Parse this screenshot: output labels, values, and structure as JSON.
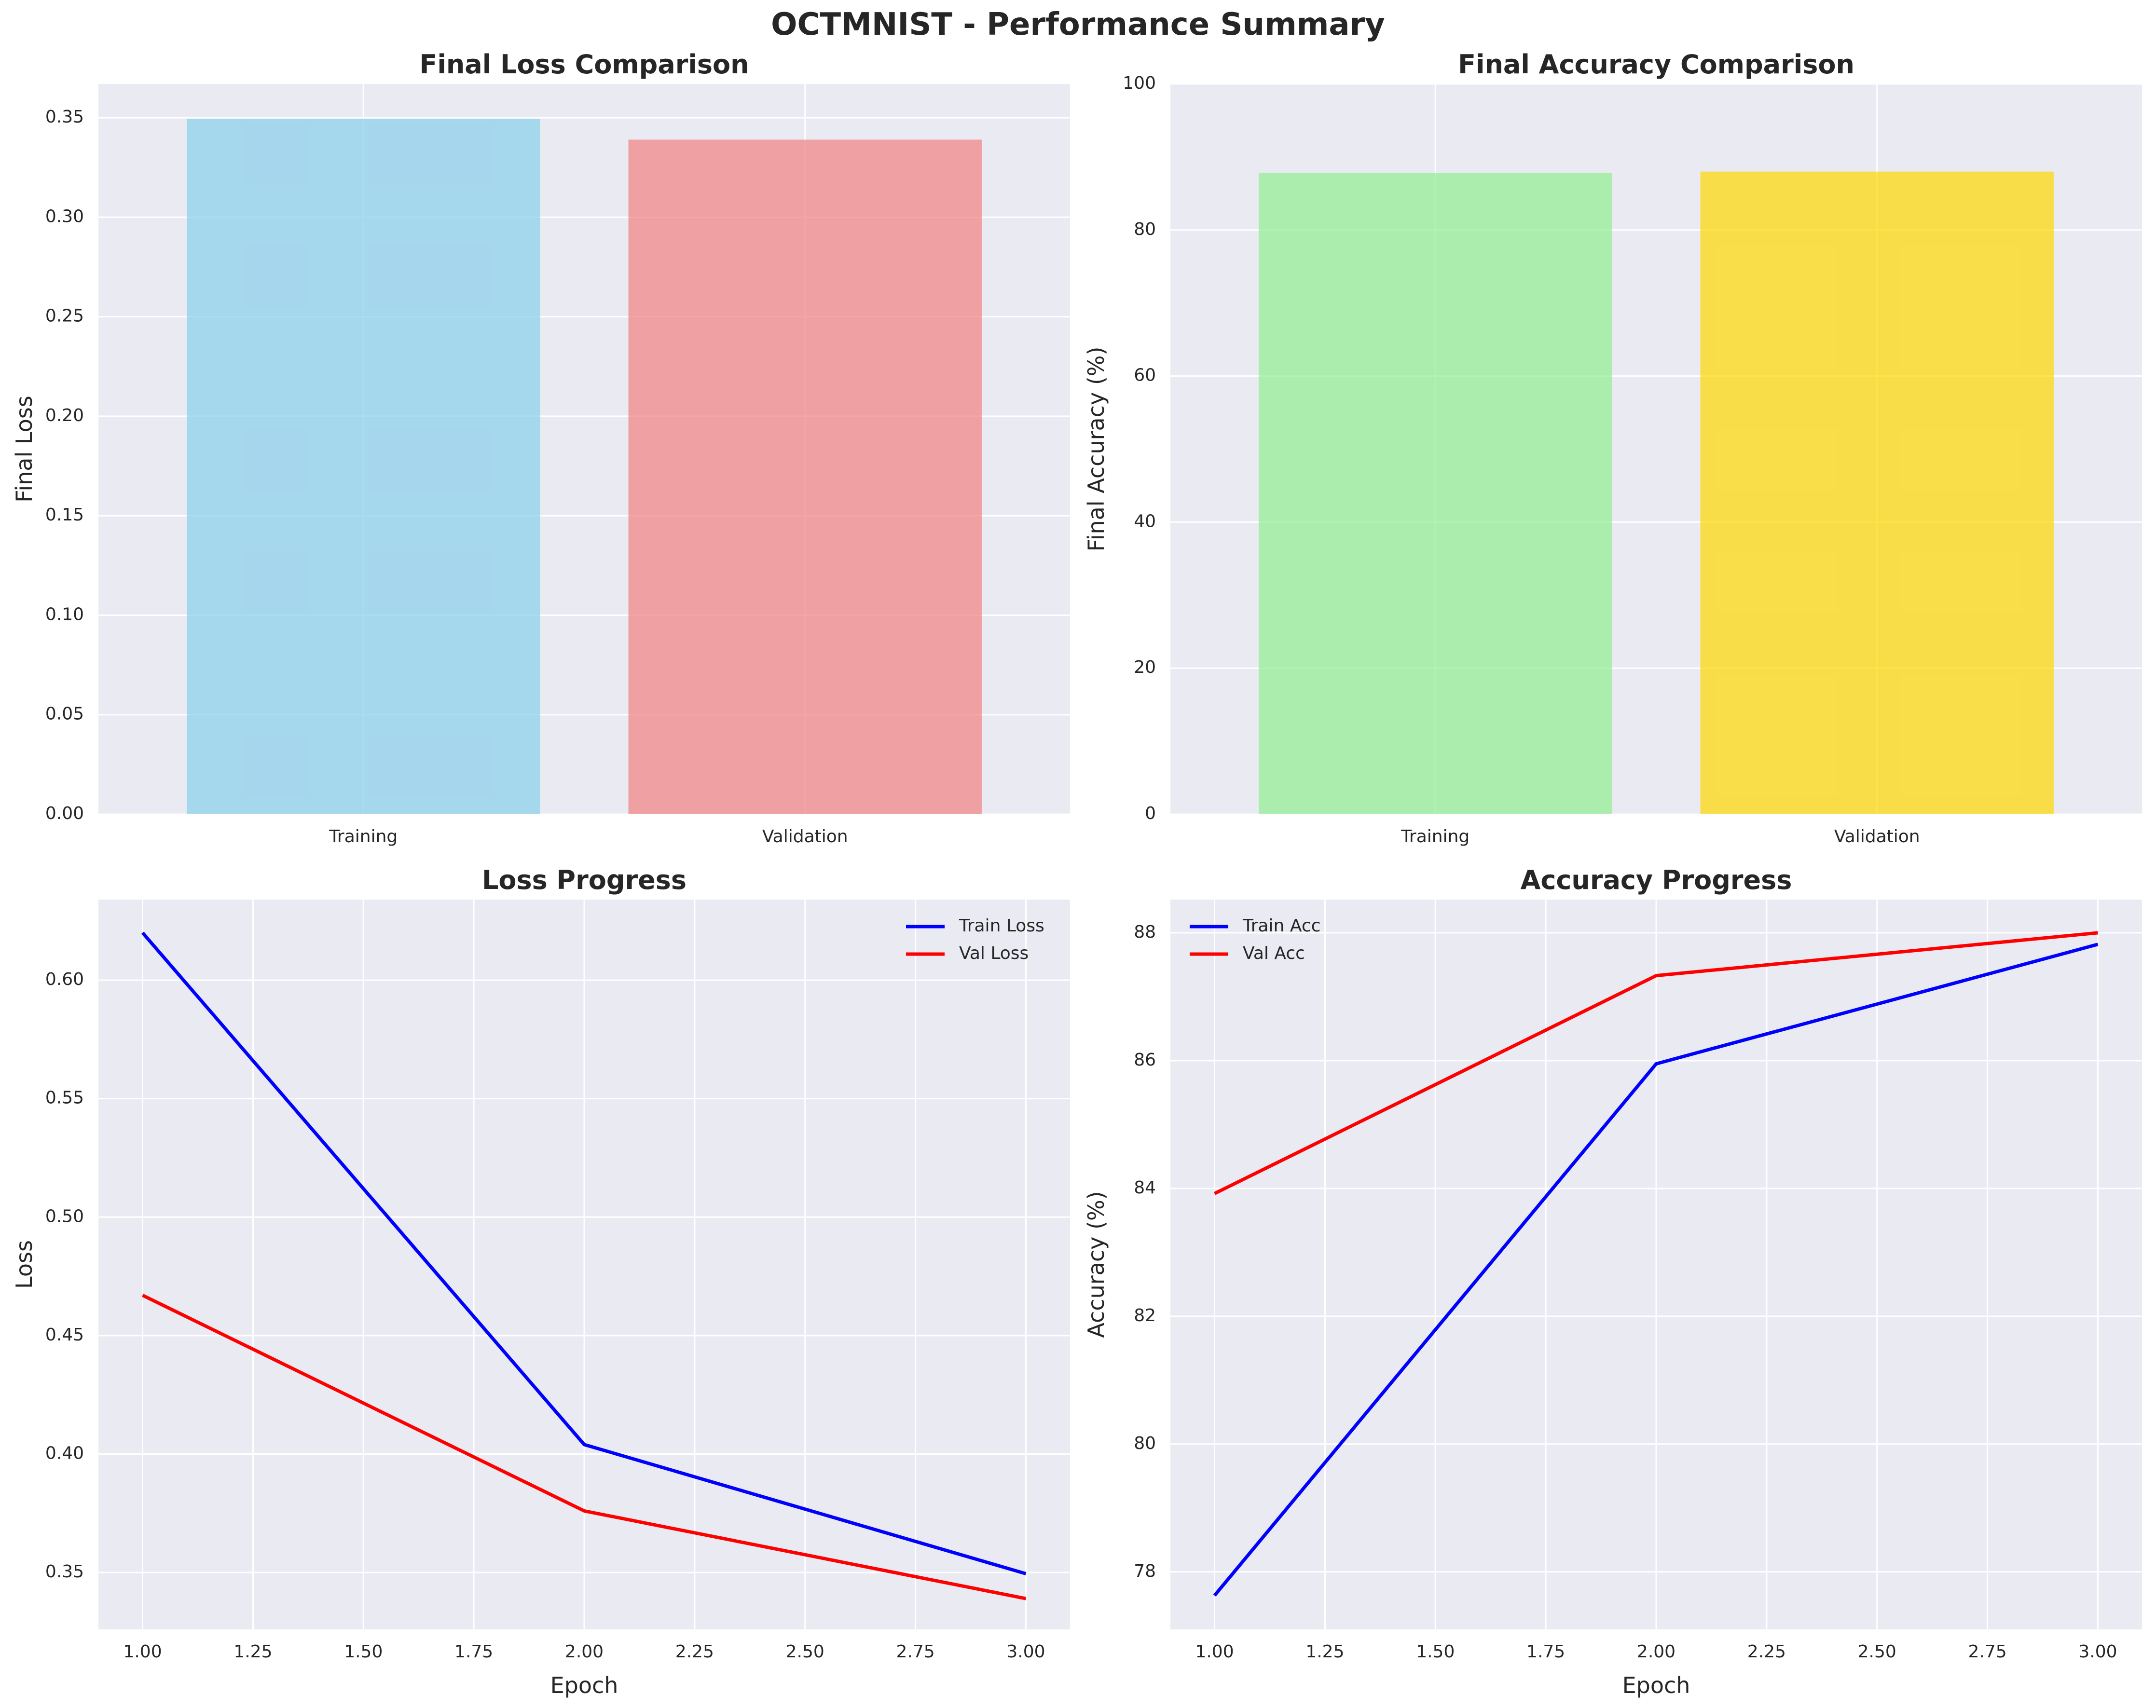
{
  "figure_title": "OCTMNIST - Performance Summary",
  "colors": {
    "background": "#eaeaf2",
    "grid": "#ffffff",
    "train_loss_bar": "#87ceeb",
    "val_loss_bar": "#f08080",
    "train_acc_bar": "#90ee90",
    "val_acc_bar": "#ffd700",
    "train_line": "#0000ff",
    "val_line": "#ff0000"
  },
  "chart_data": [
    {
      "id": "final-loss",
      "type": "bar",
      "title": "Final Loss Comparison",
      "xlabel": "",
      "ylabel": "Final Loss",
      "categories": [
        "Training",
        "Validation"
      ],
      "values": [
        0.3495,
        0.339
      ],
      "ylim": [
        0,
        0.367
      ],
      "yticks": [
        0.0,
        0.05,
        0.1,
        0.15,
        0.2,
        0.25,
        0.3,
        0.35
      ],
      "ytick_labels": [
        "0.00",
        "0.05",
        "0.10",
        "0.15",
        "0.20",
        "0.25",
        "0.30",
        "0.35"
      ],
      "bar_colors": [
        "#87ceeb",
        "#f08080"
      ],
      "grid": true
    },
    {
      "id": "final-accuracy",
      "type": "bar",
      "title": "Final Accuracy Comparison",
      "xlabel": "",
      "ylabel": "Final Accuracy (%)",
      "categories": [
        "Training",
        "Validation"
      ],
      "values": [
        87.8,
        88.0
      ],
      "ylim": [
        0,
        100
      ],
      "yticks": [
        0,
        20,
        40,
        60,
        80,
        100
      ],
      "ytick_labels": [
        "0",
        "20",
        "40",
        "60",
        "80",
        "100"
      ],
      "bar_colors": [
        "#90ee90",
        "#ffd700"
      ],
      "grid": true
    },
    {
      "id": "loss-progress",
      "type": "line",
      "title": "Loss Progress",
      "xlabel": "Epoch",
      "ylabel": "Loss",
      "x": [
        1,
        2,
        3
      ],
      "series": [
        {
          "name": "Train Loss",
          "values": [
            0.62,
            0.404,
            0.3495
          ],
          "color": "#0000ff"
        },
        {
          "name": "Val Loss",
          "values": [
            0.467,
            0.376,
            0.339
          ],
          "color": "#ff0000"
        }
      ],
      "xlim": [
        0.9,
        3.1
      ],
      "ylim": [
        0.326,
        0.634
      ],
      "xticks": [
        1.0,
        1.25,
        1.5,
        1.75,
        2.0,
        2.25,
        2.5,
        2.75,
        3.0
      ],
      "xtick_labels": [
        "1.00",
        "1.25",
        "1.50",
        "1.75",
        "2.00",
        "2.25",
        "2.50",
        "2.75",
        "3.00"
      ],
      "yticks": [
        0.35,
        0.4,
        0.45,
        0.5,
        0.55,
        0.6
      ],
      "ytick_labels": [
        "0.35",
        "0.40",
        "0.45",
        "0.50",
        "0.55",
        "0.60"
      ],
      "legend": "top-right",
      "grid": true
    },
    {
      "id": "accuracy-progress",
      "type": "line",
      "title": "Accuracy Progress",
      "xlabel": "Epoch",
      "ylabel": "Accuracy (%)",
      "x": [
        1,
        2,
        3
      ],
      "series": [
        {
          "name": "Train Acc",
          "values": [
            77.63,
            85.95,
            87.82
          ],
          "color": "#0000ff"
        },
        {
          "name": "Val Acc",
          "values": [
            83.92,
            87.33,
            88.0
          ],
          "color": "#ff0000"
        }
      ],
      "xlim": [
        0.9,
        3.1
      ],
      "ylim": [
        77.1,
        88.52
      ],
      "xticks": [
        1.0,
        1.25,
        1.5,
        1.75,
        2.0,
        2.25,
        2.5,
        2.75,
        3.0
      ],
      "xtick_labels": [
        "1.00",
        "1.25",
        "1.50",
        "1.75",
        "2.00",
        "2.25",
        "2.50",
        "2.75",
        "3.00"
      ],
      "yticks": [
        78,
        80,
        82,
        84,
        86,
        88
      ],
      "ytick_labels": [
        "78",
        "80",
        "82",
        "84",
        "86",
        "88"
      ],
      "legend": "top-left",
      "grid": true
    }
  ]
}
